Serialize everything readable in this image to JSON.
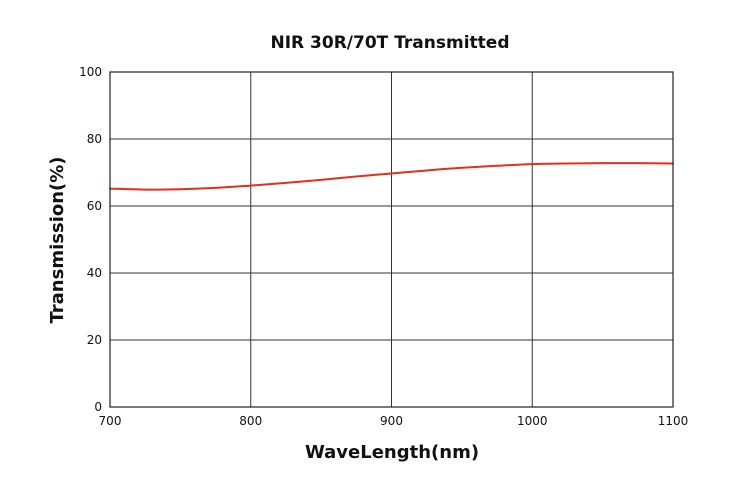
{
  "chart_data": {
    "type": "line",
    "title": "NIR 30R/70T Transmitted",
    "xlabel": "WaveLength(nm)",
    "ylabel": "Transmission(%)",
    "xlim": [
      700,
      1100
    ],
    "ylim": [
      0,
      100
    ],
    "xticks": [
      700,
      800,
      900,
      1000,
      1100
    ],
    "yticks": [
      0,
      20,
      40,
      60,
      80,
      100
    ],
    "xtick_labels": [
      "700",
      "800",
      "900",
      "1000",
      "1100"
    ],
    "ytick_labels": [
      "0",
      "20",
      "40",
      "60",
      "80",
      "100"
    ],
    "grid": true,
    "series": [
      {
        "color": "#e0301e",
        "x": [
          700,
          725,
          750,
          775,
          800,
          825,
          850,
          875,
          900,
          925,
          950,
          975,
          1000,
          1025,
          1050,
          1075,
          1100
        ],
        "y": [
          65.2,
          64.9,
          65.0,
          65.4,
          66.1,
          66.9,
          67.8,
          68.8,
          69.7,
          70.6,
          71.4,
          72.0,
          72.5,
          72.7,
          72.8,
          72.8,
          72.7
        ]
      }
    ]
  }
}
